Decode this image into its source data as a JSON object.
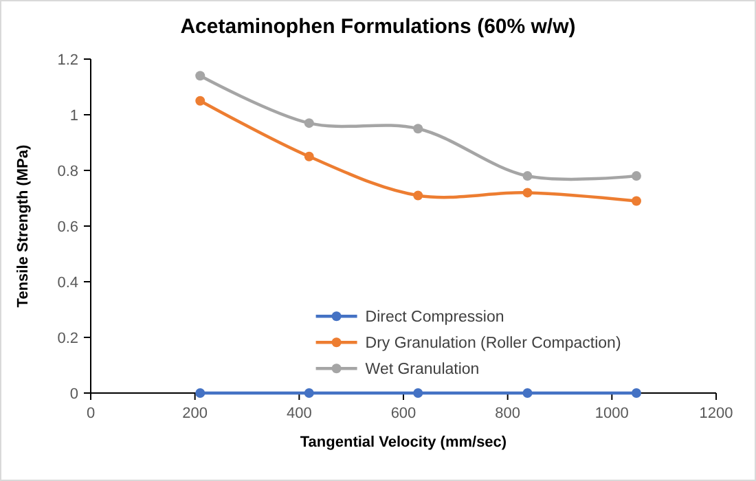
{
  "chart_data": {
    "type": "line",
    "title": "Acetaminophen Formulations (60% w/w)",
    "xlabel": "Tangential Velocity (mm/sec)",
    "ylabel": "Tensile Strength (MPa)",
    "x": [
      210,
      419,
      628,
      838,
      1047
    ],
    "series": [
      {
        "name": "Direct Compression",
        "color": "#4472c4",
        "values": [
          0,
          0,
          0,
          0,
          0
        ]
      },
      {
        "name": "Dry Granulation (Roller Compaction)",
        "color": "#ed7d31",
        "values": [
          1.05,
          0.85,
          0.71,
          0.72,
          0.69
        ]
      },
      {
        "name": "Wet Granulation",
        "color": "#a5a5a5",
        "values": [
          1.14,
          0.97,
          0.95,
          0.78,
          0.78
        ]
      }
    ],
    "xlim": [
      0,
      1200
    ],
    "xticks": [
      0,
      200,
      400,
      600,
      800,
      1000,
      1200
    ],
    "ylim": [
      0,
      1.2
    ],
    "yticks": [
      0,
      0.2,
      0.4,
      0.6,
      0.8,
      1,
      1.2
    ],
    "grid": false,
    "legend": "bottom right",
    "marker": "circle",
    "line_style": "solid"
  }
}
